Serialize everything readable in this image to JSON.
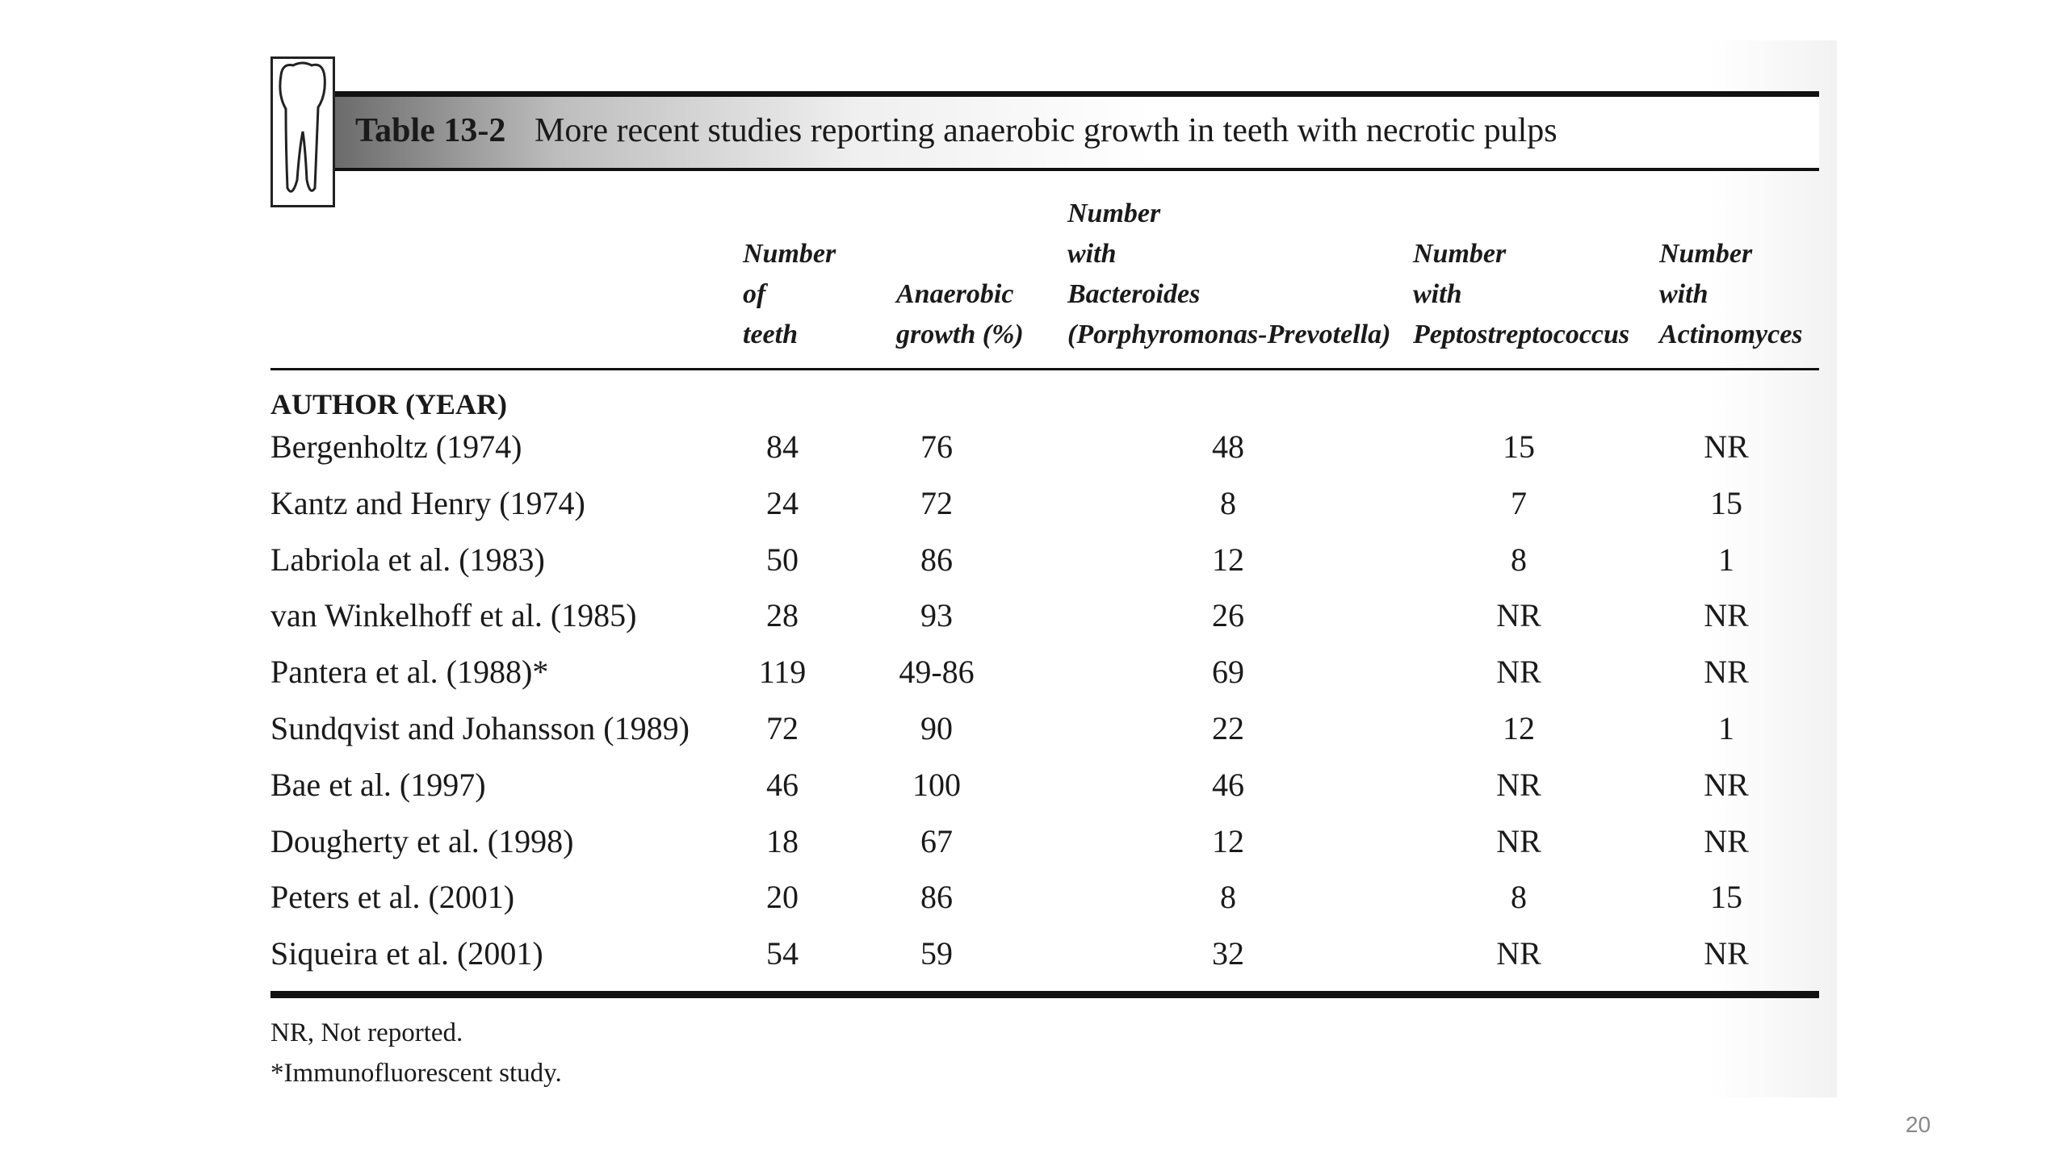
{
  "table": {
    "label": "Table 13-2",
    "title": "More recent studies reporting anaerobic growth in teeth with necrotic pulps",
    "columns": [
      "Number\nof\nteeth",
      "Anaerobic\ngrowth (%)",
      "Number\nwith\nBacteroides\n(Porphyromonas-Prevotella)",
      "Number\nwith\nPeptostreptococcus",
      "Number\nwith\nActinomyces"
    ],
    "row_header": "AUTHOR (YEAR)",
    "rows": [
      [
        "Bergenholtz (1974)",
        "84",
        "76",
        "48",
        "15",
        "NR"
      ],
      [
        "Kantz and Henry (1974)",
        "24",
        "72",
        "8",
        "7",
        "15"
      ],
      [
        "Labriola et al. (1983)",
        "50",
        "86",
        "12",
        "8",
        "1"
      ],
      [
        "van Winkelhoff et al. (1985)",
        "28",
        "93",
        "26",
        "NR",
        "NR"
      ],
      [
        "Pantera et al. (1988)*",
        "119",
        "49-86",
        "69",
        "NR",
        "NR"
      ],
      [
        "Sundqvist and Johansson (1989)",
        "72",
        "90",
        "22",
        "12",
        "1"
      ],
      [
        "Bae et al. (1997)",
        "46",
        "100",
        "46",
        "NR",
        "NR"
      ],
      [
        "Dougherty et al. (1998)",
        "18",
        "67",
        "12",
        "NR",
        "NR"
      ],
      [
        "Peters et al. (2001)",
        "20",
        "86",
        "8",
        "8",
        "15"
      ],
      [
        "Siqueira et al. (2001)",
        "54",
        "59",
        "32",
        "NR",
        "NR"
      ]
    ],
    "footnotes": [
      "NR, Not reported.",
      "*Immunofluorescent study."
    ]
  },
  "page_number": "20"
}
